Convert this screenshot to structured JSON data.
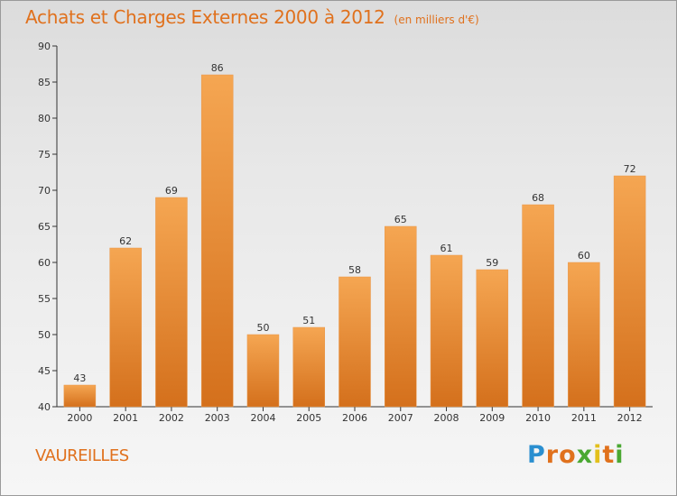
{
  "title": "Achats et Charges Externes 2000 à 2012",
  "subtitle": "(en milliers d'€)",
  "commune": "VAUREILLES",
  "logo_text": "Proxiti",
  "colors": {
    "title": "#e0711d",
    "bar_light": "#f5a652",
    "bar_dark": "#d4701c",
    "axis": "#333333",
    "grid": "#c8c8c8"
  },
  "chart_data": {
    "type": "bar",
    "title": "Achats et Charges Externes 2000 à 2012",
    "subtitle": "(en milliers d'€)",
    "xlabel": "",
    "ylabel": "",
    "categories": [
      "2000",
      "2001",
      "2002",
      "2003",
      "2004",
      "2005",
      "2006",
      "2007",
      "2008",
      "2009",
      "2010",
      "2011",
      "2012"
    ],
    "values": [
      43,
      62,
      69,
      86,
      50,
      51,
      58,
      65,
      61,
      59,
      68,
      60,
      72
    ],
    "ylim": [
      40,
      90
    ],
    "yticks": [
      40,
      45,
      50,
      55,
      60,
      65,
      70,
      75,
      80,
      85,
      90
    ],
    "grid": false,
    "data_labels": true
  }
}
